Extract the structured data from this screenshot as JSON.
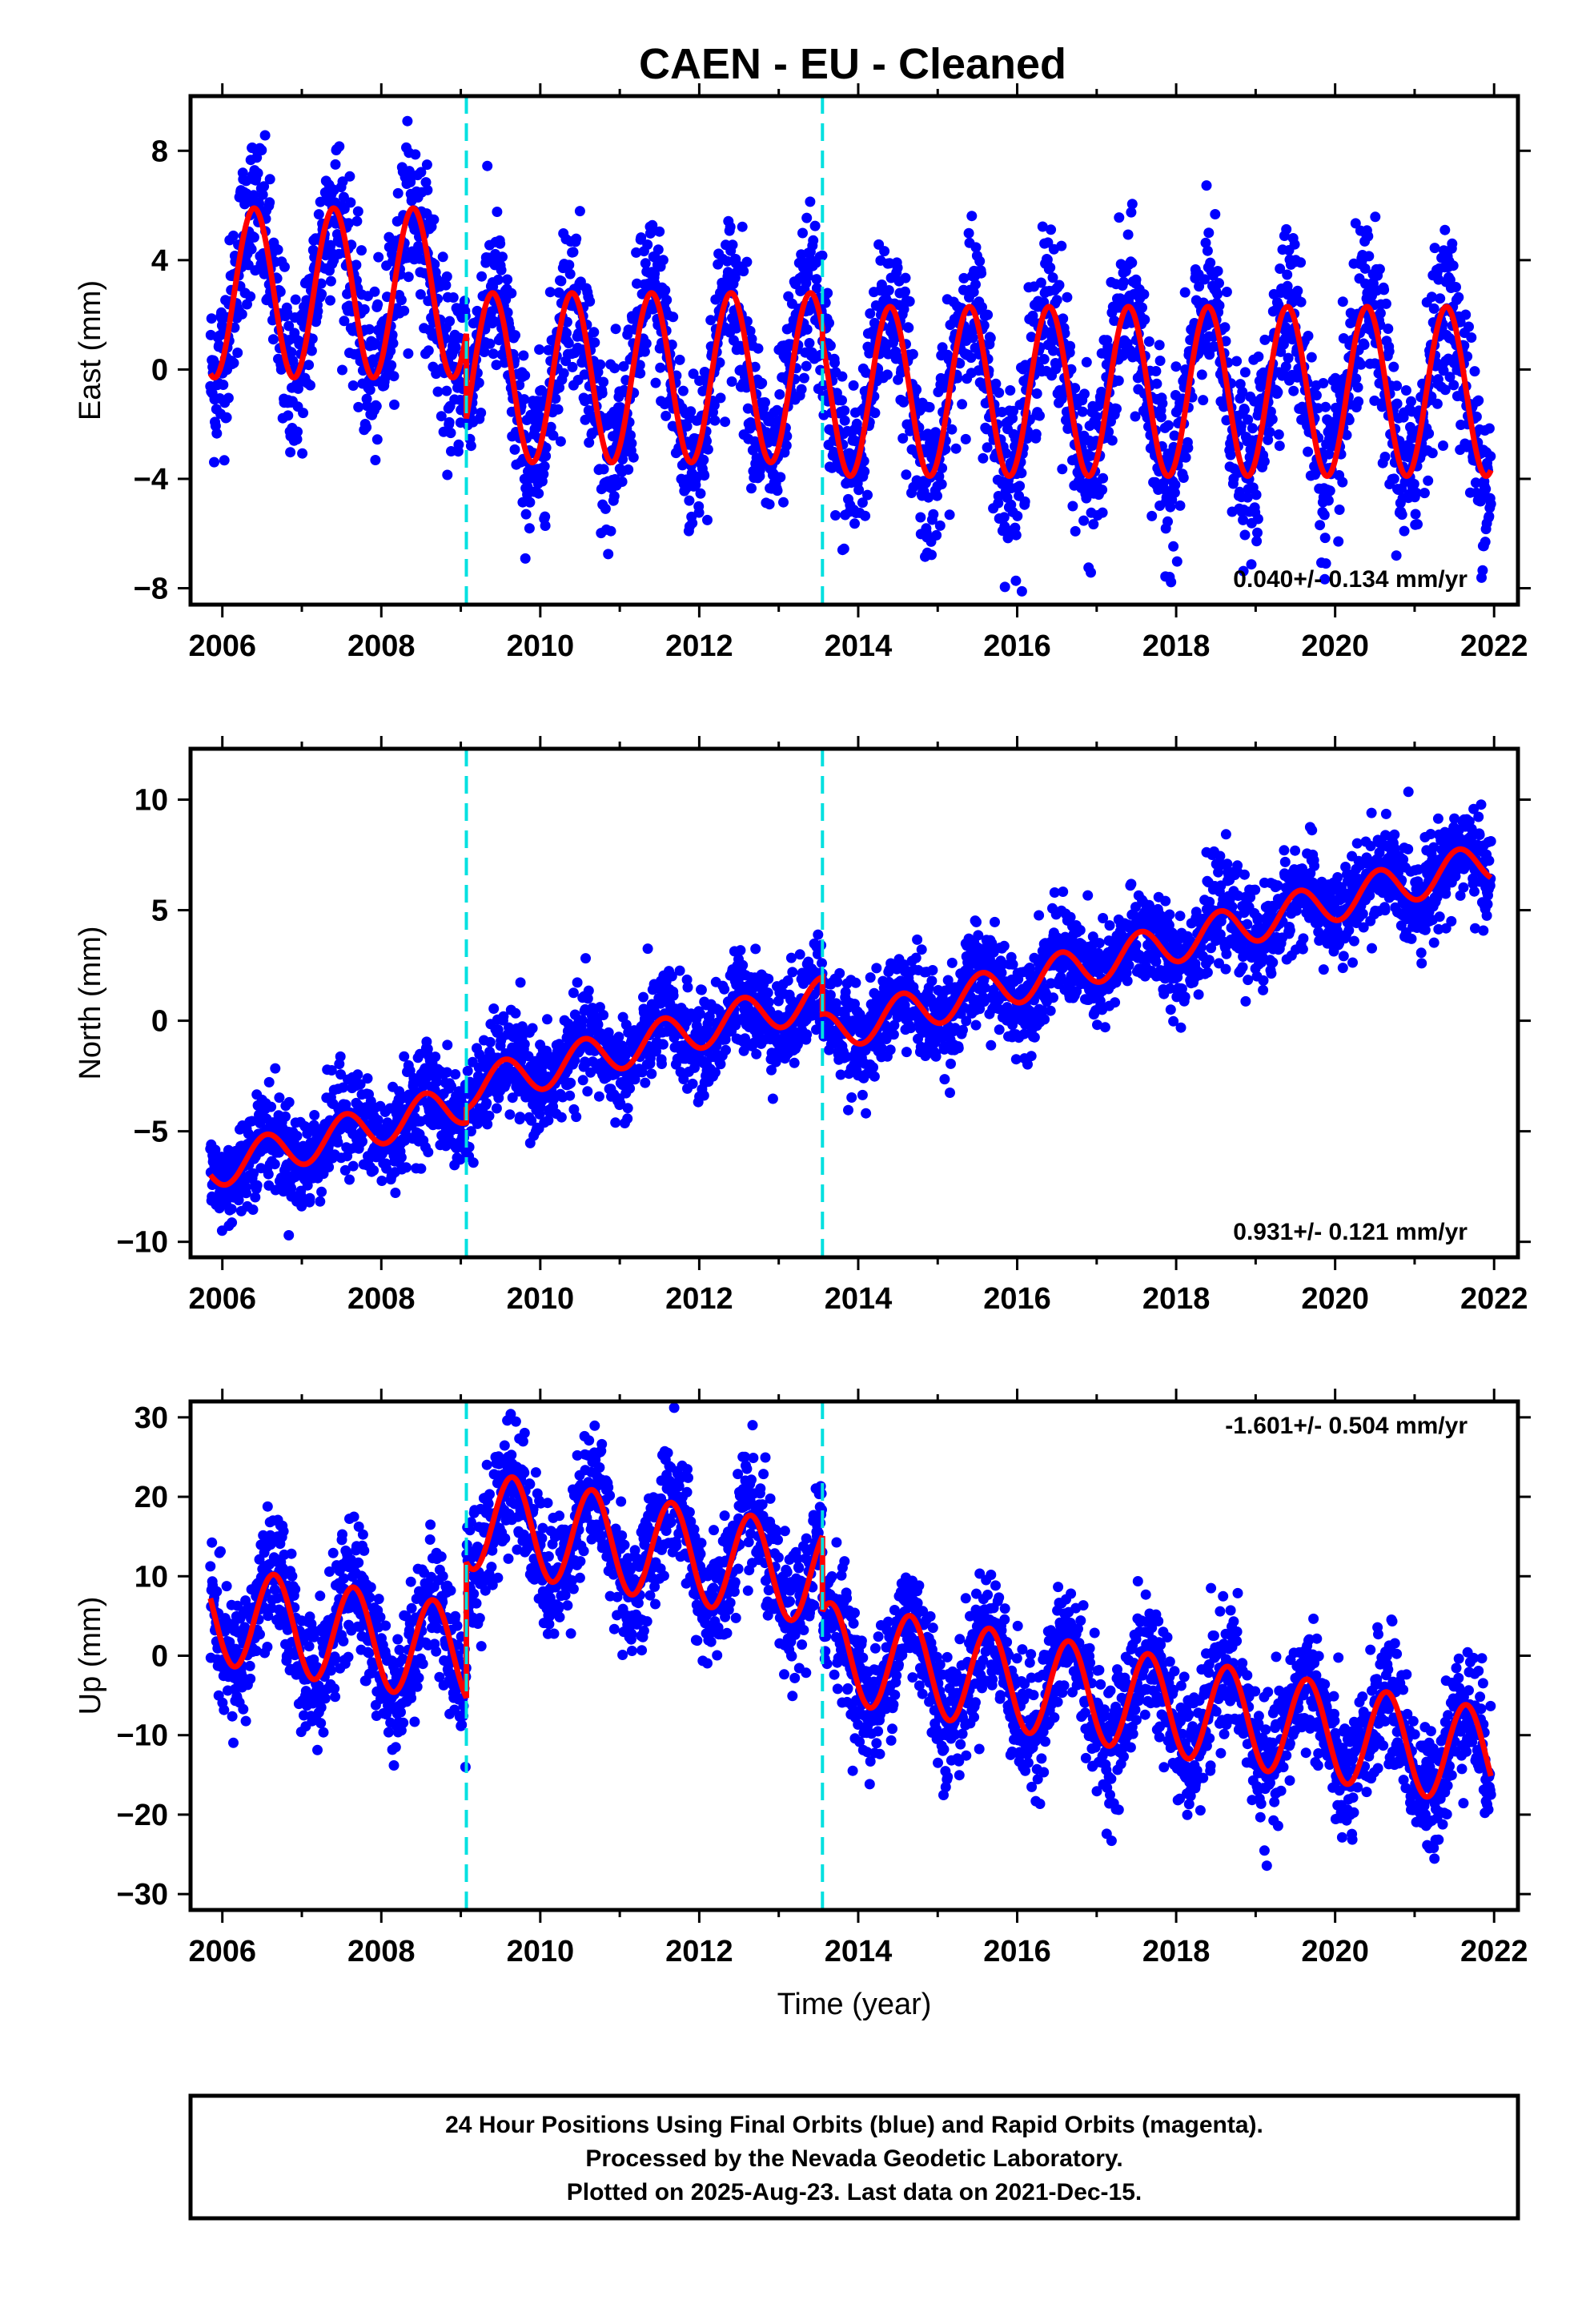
{
  "title": "CAEN  - EU - Cleaned",
  "colors": {
    "points": "#0000ff",
    "model": "#ff0000",
    "breaks": "#00e0e0",
    "frame": "#000000"
  },
  "chart_data": [
    {
      "type": "scatter",
      "name": "east",
      "ylabel": "East (mm)",
      "xlabel": "",
      "xlim": [
        2005.6,
        2022.3
      ],
      "ylim": [
        -8.6,
        10.0
      ],
      "yticks": [
        -8,
        -4,
        0,
        4,
        8
      ],
      "ytick_labels": [
        "−8",
        "−4",
        "0",
        "4",
        "8"
      ],
      "xticks": [
        2006,
        2008,
        2010,
        2012,
        2014,
        2016,
        2018,
        2020,
        2022
      ],
      "xtick_labels": [
        "2006",
        "2008",
        "2010",
        "2012",
        "2014",
        "2016",
        "2018",
        "2020",
        "2022"
      ],
      "breaks": [
        2009.07,
        2013.55
      ],
      "rate": "0.040+/- 0.134 mm/yr",
      "rate_position": "bottom-right",
      "data_range": [
        2005.85,
        2021.96
      ],
      "model": {
        "segments": [
          {
            "start": 2005.85,
            "end": 2009.07,
            "offset": 2.8,
            "amplitude": 3.1,
            "peak": 2006.4
          },
          {
            "start": 2009.07,
            "end": 2013.55,
            "offset": -0.3,
            "amplitude": 3.1,
            "peak": 2010.4
          },
          {
            "start": 2013.55,
            "end": 2021.96,
            "offset": -0.8,
            "amplitude": 3.1,
            "peak": 2014.4
          }
        ]
      },
      "scatter_noise": 1.5
    },
    {
      "type": "scatter",
      "name": "north",
      "ylabel": "North (mm)",
      "xlabel": "",
      "xlim": [
        2005.6,
        2022.3
      ],
      "ylim": [
        -10.7,
        12.3
      ],
      "yticks": [
        -10,
        -5,
        0,
        5,
        10
      ],
      "ytick_labels": [
        "−10",
        "−5",
        "0",
        "5",
        "10"
      ],
      "xticks": [
        2006,
        2008,
        2010,
        2012,
        2014,
        2016,
        2018,
        2020,
        2022
      ],
      "xtick_labels": [
        "2006",
        "2008",
        "2010",
        "2012",
        "2014",
        "2016",
        "2018",
        "2020",
        "2022"
      ],
      "breaks": [
        2009.07,
        2013.55
      ],
      "rate": "0.931+/- 0.121 mm/yr",
      "rate_position": "bottom-right",
      "data_range": [
        2005.85,
        2021.96
      ],
      "model": {
        "segments": [
          {
            "start": 2005.85,
            "end": 2009.07,
            "offset": -6.7,
            "slope": 0.931,
            "amplitude": 0.9,
            "peak": 2006.55
          },
          {
            "start": 2009.07,
            "end": 2013.55,
            "offset": -3.1,
            "slope": 0.931,
            "amplitude": 0.9,
            "peak": 2009.55
          },
          {
            "start": 2013.55,
            "end": 2021.96,
            "offset": -0.6,
            "slope": 0.931,
            "amplitude": 0.9,
            "peak": 2014.55
          }
        ]
      },
      "scatter_noise": 1.1
    },
    {
      "type": "scatter",
      "name": "up",
      "ylabel": "Up (mm)",
      "xlabel": "Time (year)",
      "xlim": [
        2005.6,
        2022.3
      ],
      "ylim": [
        -32.0,
        32.0
      ],
      "yticks": [
        -30,
        -20,
        -10,
        0,
        10,
        20,
        30
      ],
      "ytick_labels": [
        "−30",
        "−20",
        "−10",
        "0",
        "10",
        "20",
        "30"
      ],
      "xticks": [
        2006,
        2008,
        2010,
        2012,
        2014,
        2016,
        2018,
        2020,
        2022
      ],
      "xtick_labels": [
        "2006",
        "2008",
        "2010",
        "2012",
        "2014",
        "2016",
        "2018",
        "2020",
        "2022"
      ],
      "breaks": [
        2009.07,
        2013.55
      ],
      "rate": "-1.601+/- 0.504 mm/yr",
      "rate_position": "top-right",
      "data_range": [
        2005.85,
        2021.96
      ],
      "model": {
        "segments": [
          {
            "start": 2005.85,
            "end": 2009.07,
            "offset": 5.3,
            "slope": -1.601,
            "amplitude": 6.2,
            "peak": 2006.65
          },
          {
            "start": 2009.07,
            "end": 2013.55,
            "offset": 17.2,
            "slope": -1.601,
            "amplitude": 6.2,
            "peak": 2009.65
          },
          {
            "start": 2013.55,
            "end": 2021.96,
            "offset": 0.6,
            "slope": -1.601,
            "amplitude": 6.2,
            "peak": 2014.65
          }
        ]
      },
      "scatter_noise": 4.0
    }
  ],
  "footer": {
    "line1": "24 Hour Positions Using Final Orbits (blue) and Rapid Orbits (magenta).",
    "line2": "Processed by the Nevada Geodetic Laboratory.",
    "line3": "Plotted on 2025-Aug-23. Last data on 2021-Dec-15."
  }
}
